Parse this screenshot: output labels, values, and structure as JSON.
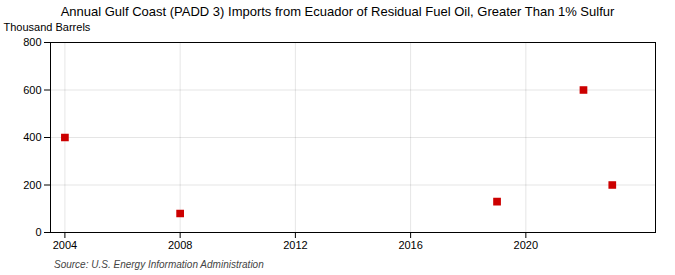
{
  "chart_data": {
    "type": "scatter",
    "title": "Annual Gulf Coast (PADD 3) Imports from Ecuador of Residual Fuel Oil, Greater Than 1% Sulfur",
    "ylabel": "Thousand Barrels",
    "source": "Source: U.S. Energy Information Administration",
    "x": [
      2004,
      2008,
      2019,
      2022,
      2023
    ],
    "values": [
      400,
      80,
      130,
      600,
      200
    ],
    "color": "#cc0000",
    "marker": "square",
    "xlim": [
      2003.5,
      2024.5
    ],
    "xticks": [
      2004,
      2008,
      2012,
      2016,
      2020
    ],
    "ylim": [
      0,
      800
    ],
    "yticks": [
      0,
      200,
      400,
      600,
      800
    ],
    "grid": true
  }
}
